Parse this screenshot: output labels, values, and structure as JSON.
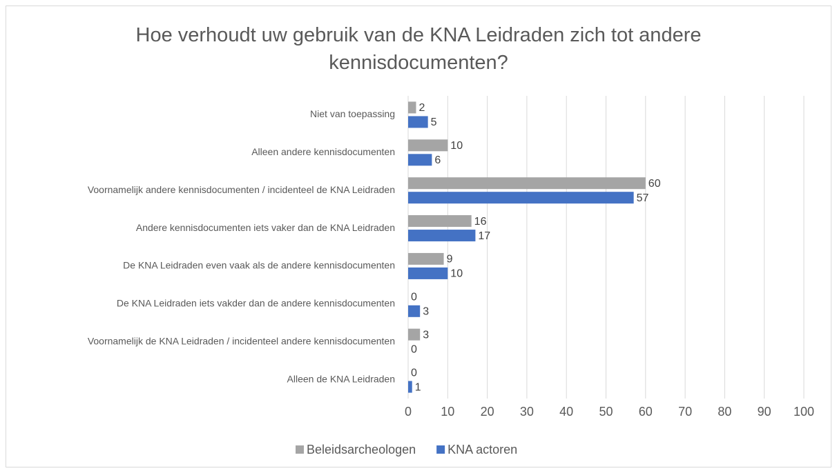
{
  "chart_data": {
    "type": "bar",
    "orientation": "horizontal",
    "title": "Hoe verhoudt uw gebruik van de KNA Leidraden zich tot andere kennisdocumenten?",
    "categories": [
      "Niet van toepassing",
      "Alleen andere kennisdocumenten",
      "Voornamelijk andere kennisdocumenten / incidenteel de KNA Leidraden",
      "Andere kennisdocumenten iets vaker dan de KNA Leidraden",
      "De KNA Leidraden even vaak als de andere kennisdocumenten",
      "De KNA Leidraden iets vakder dan de andere kennisdocumenten",
      "Voornamelijk de KNA Leidraden / incidenteel andere kennisdocumenten",
      "Alleen de KNA Leidraden"
    ],
    "series": [
      {
        "name": "Beleidsarcheologen",
        "color": "#a5a5a5",
        "values": [
          2,
          10,
          60,
          16,
          9,
          0,
          3,
          0
        ]
      },
      {
        "name": "KNA actoren",
        "color": "#4472c4",
        "values": [
          5,
          6,
          57,
          17,
          10,
          3,
          0,
          1
        ]
      }
    ],
    "xlim": [
      0,
      100
    ],
    "xticks": [
      0,
      10,
      20,
      30,
      40,
      50,
      60,
      70,
      80,
      90,
      100
    ],
    "grid": true,
    "legend": "bottom"
  }
}
